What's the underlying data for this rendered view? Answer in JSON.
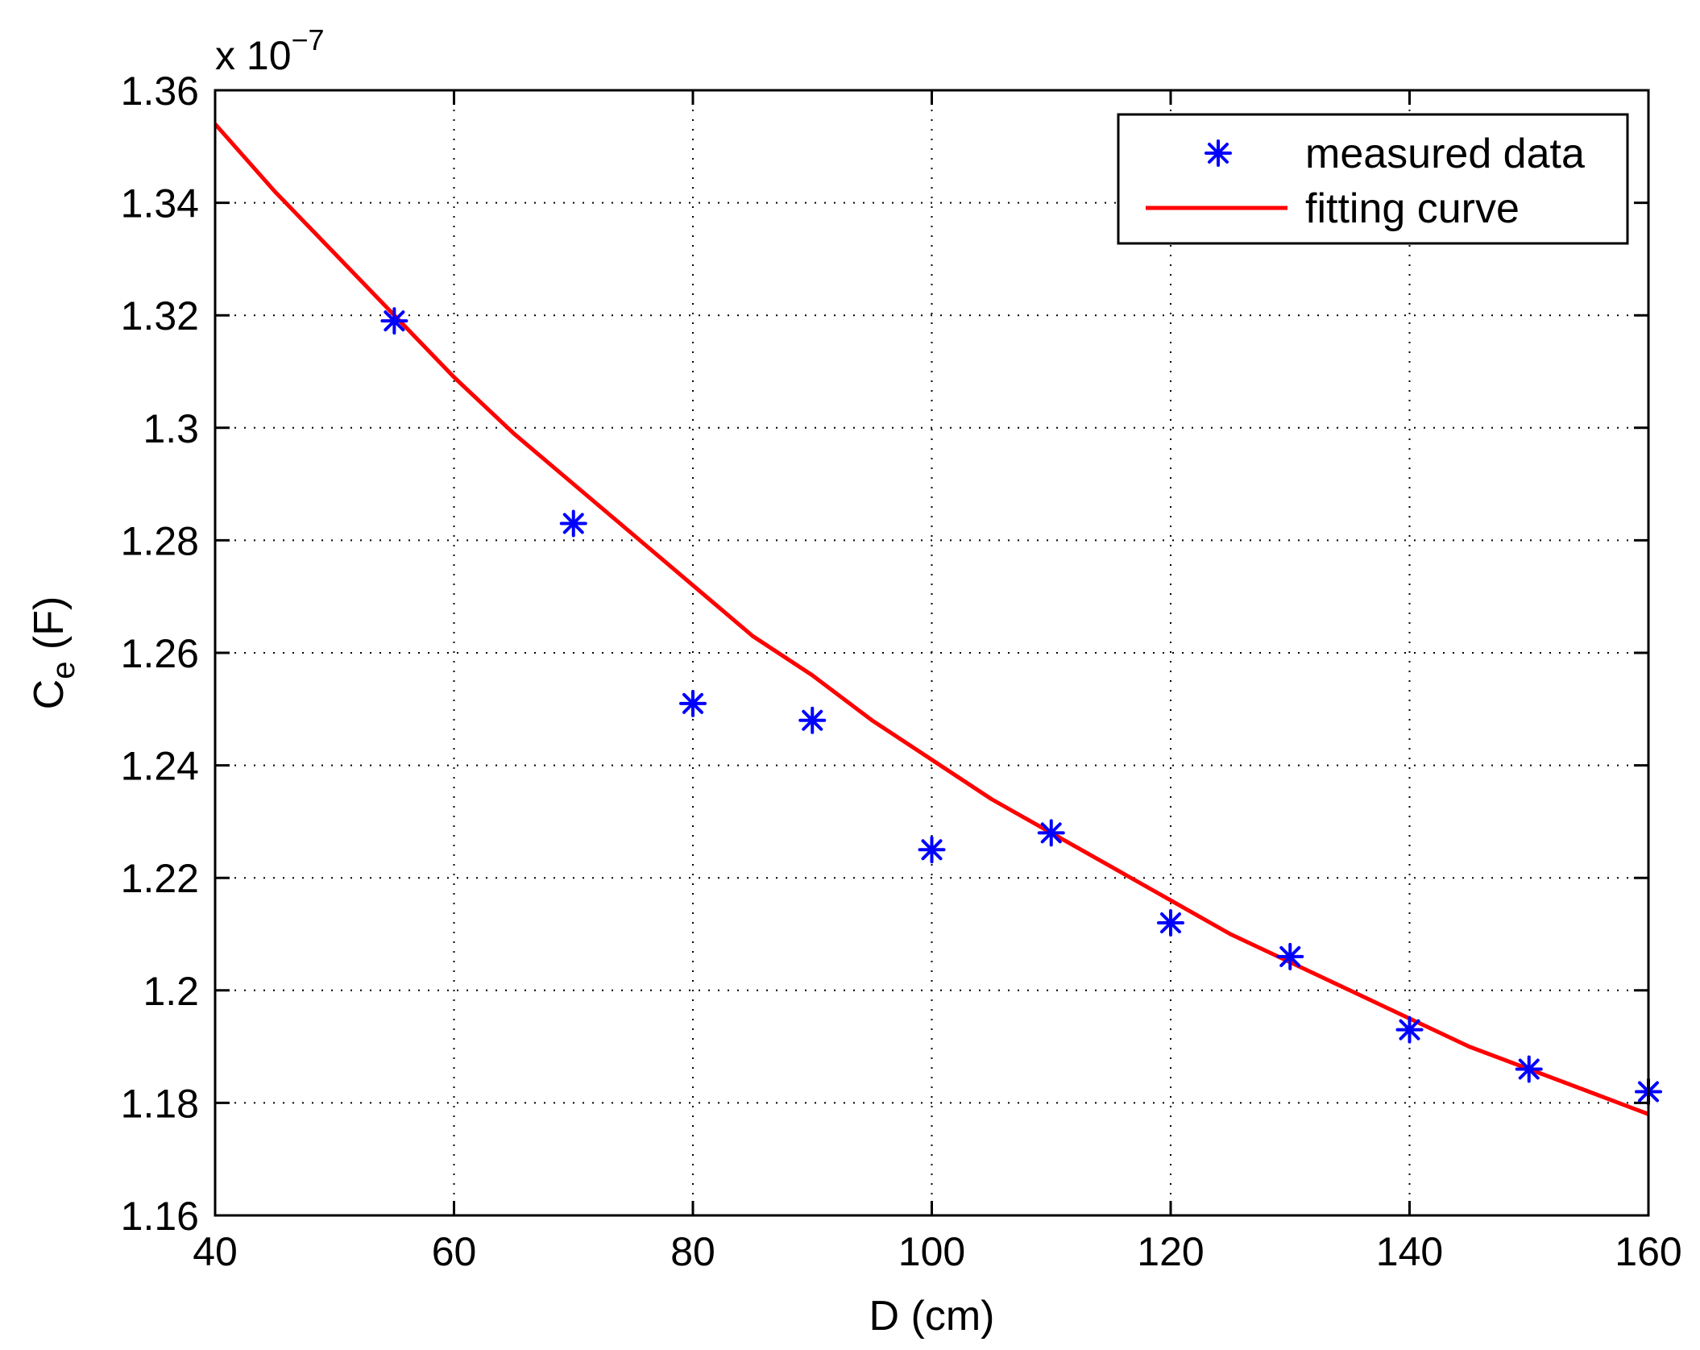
{
  "chart_data": {
    "type": "scatter",
    "xlabel": "D (cm)",
    "ylabel_main": "C",
    "ylabel_sub": "e",
    "ylabel_unit": " (F)",
    "y_exponent_prefix": "x 10",
    "y_exponent_power": "−7",
    "xlim": [
      40,
      160
    ],
    "ylim": [
      1.16,
      1.36
    ],
    "x_ticks": [
      40,
      60,
      80,
      100,
      120,
      140,
      160
    ],
    "x_tick_labels": [
      "40",
      "60",
      "80",
      "100",
      "120",
      "140",
      "160"
    ],
    "y_ticks": [
      1.16,
      1.18,
      1.2,
      1.22,
      1.24,
      1.26,
      1.28,
      1.3,
      1.32,
      1.34,
      1.36
    ],
    "y_tick_labels": [
      "1.16",
      "1.18",
      "1.2",
      "1.22",
      "1.24",
      "1.26",
      "1.28",
      "1.3",
      "1.32",
      "1.34",
      "1.36"
    ],
    "grid": true,
    "legend_position": "top-right",
    "series": [
      {
        "name": "measured data",
        "style": "markers",
        "marker": "asterisk",
        "color": "#0000ff",
        "x": [
          55,
          70,
          80,
          90,
          100,
          110,
          120,
          130,
          140,
          150,
          160
        ],
        "y": [
          1.319,
          1.283,
          1.251,
          1.248,
          1.225,
          1.228,
          1.212,
          1.206,
          1.193,
          1.186,
          1.182
        ]
      },
      {
        "name": "fitting curve",
        "style": "line",
        "color": "#ff0000",
        "x": [
          40,
          45,
          50,
          55,
          60,
          65,
          70,
          75,
          80,
          85,
          90,
          95,
          100,
          105,
          110,
          115,
          120,
          125,
          130,
          135,
          140,
          145,
          150,
          155,
          160
        ],
        "y": [
          1.354,
          1.342,
          1.331,
          1.32,
          1.309,
          1.299,
          1.29,
          1.281,
          1.272,
          1.263,
          1.256,
          1.248,
          1.241,
          1.234,
          1.228,
          1.222,
          1.216,
          1.21,
          1.205,
          1.2,
          1.195,
          1.19,
          1.186,
          1.182,
          1.178
        ]
      }
    ]
  }
}
